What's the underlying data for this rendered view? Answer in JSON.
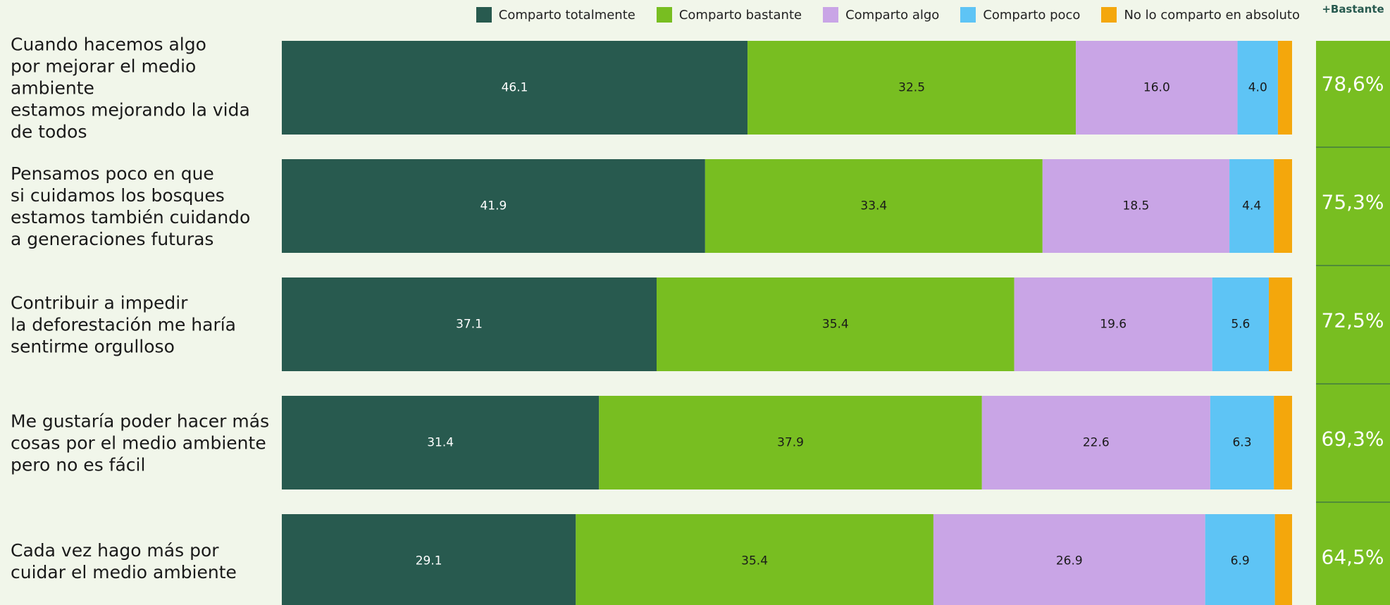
{
  "chart_data": {
    "type": "stacked-bar",
    "orientation": "horizontal",
    "categories": [
      "Cuando hacemos algo\npor mejorar el medio ambiente\nestamos mejorando la vida\nde todos",
      "Pensamos poco en que\nsi cuidamos los bosques\nestamos también cuidando\na generaciones futuras",
      "Contribuir a impedir\nla deforestación me haría\nsentirme orgulloso",
      "Me gustaría poder hacer más\ncosas por el medio ambiente\npero no es fácil",
      "Cada vez hago más por\ncuidar el medio ambiente"
    ],
    "series": [
      {
        "name": "Comparto totalmente",
        "color": "#285a4f",
        "values": [
          46.1,
          41.9,
          37.1,
          31.4,
          29.1
        ]
      },
      {
        "name": "Comparto bastante",
        "color": "#78be21",
        "values": [
          32.5,
          33.4,
          35.4,
          37.9,
          35.4
        ]
      },
      {
        "name": "Comparto algo",
        "color": "#c9a5e6",
        "values": [
          16.0,
          18.5,
          19.6,
          22.6,
          26.9
        ],
        "value_labels": [
          "16.0",
          "18.5",
          "19.6",
          "22.6",
          "26.9"
        ]
      },
      {
        "name": "Comparto poco",
        "color": "#5ec4f5",
        "values": [
          4.0,
          4.4,
          5.6,
          6.3,
          6.9
        ],
        "value_labels": [
          "4.0",
          "4.4",
          "5.6",
          "6.3",
          "6.9"
        ]
      },
      {
        "name": "No lo comparto en absoluto",
        "color": "#f4a70c",
        "values": [
          1.4,
          1.8,
          2.3,
          1.8,
          1.7
        ],
        "show_labels": false
      }
    ],
    "xlim": [
      0,
      100
    ],
    "totals": {
      "label": "+Bastante",
      "values": [
        78.6,
        75.3,
        72.5,
        69.3,
        64.5
      ],
      "value_labels": [
        "78,6%",
        "75,3%",
        "72,5%",
        "69,3%",
        "64,5%"
      ]
    }
  }
}
